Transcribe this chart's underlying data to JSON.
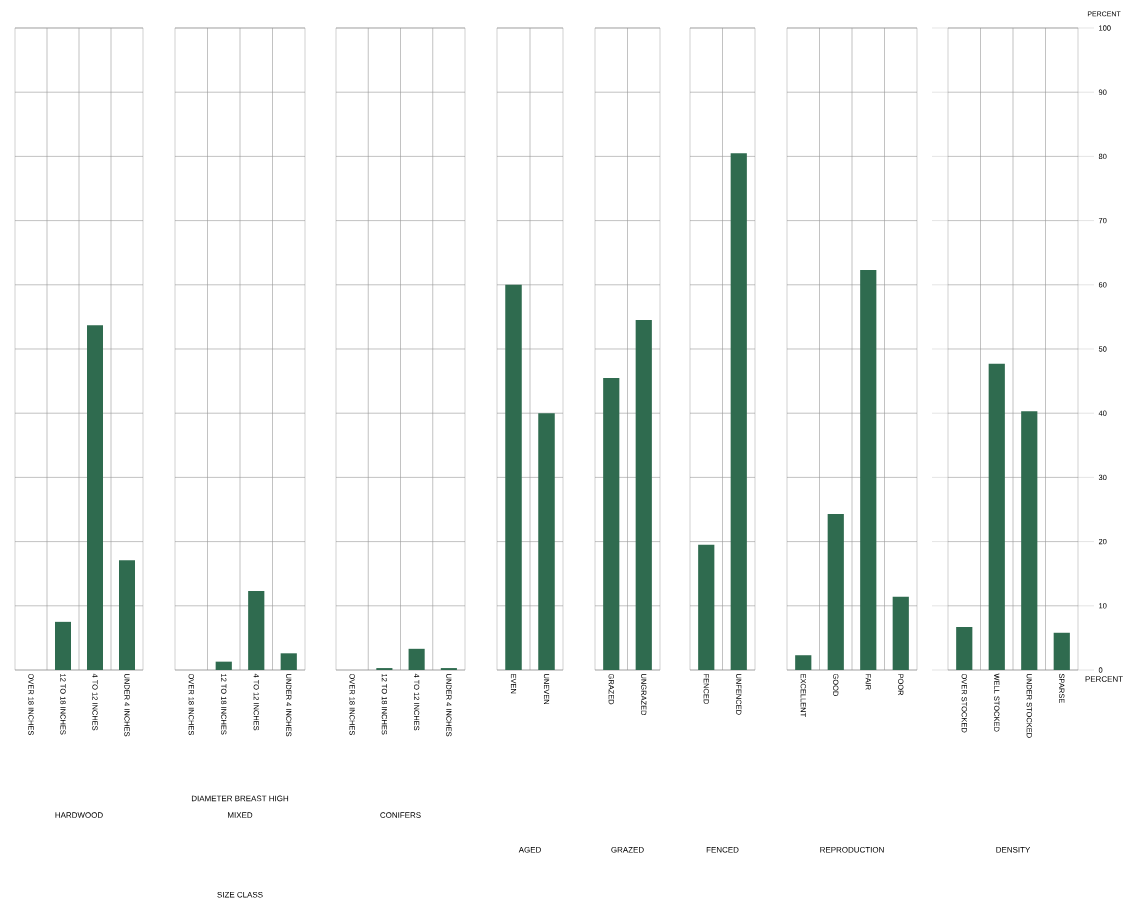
{
  "chart_data": [
    {
      "type": "bar",
      "categories": [
        "OVER 18 INCHES",
        "12 TO 18 INCHES",
        "4 TO 12 INCHES",
        "UNDER 4 INCHES"
      ],
      "values": [
        0,
        7.5,
        53.7,
        17.1
      ],
      "color": "#2f6b4f",
      "ylim": [
        0,
        100
      ],
      "yticks": [
        0,
        10,
        20,
        30,
        40,
        50,
        60,
        70,
        80,
        90,
        100
      ],
      "grid": true,
      "tick_labels": "x",
      "xlabel": "HARDWOOD"
    },
    {
      "type": "bar",
      "categories": [
        "OVER 18 INCHES",
        "12 TO 18 INCHES",
        "4 TO 12 INCHES",
        "UNDER 4 INCHES"
      ],
      "values": [
        0,
        1.3,
        12.3,
        2.6
      ],
      "color": "#2f6b4f",
      "ylim": [
        0,
        100
      ],
      "yticks": [
        0,
        10,
        20,
        30,
        40,
        50,
        60,
        70,
        80,
        90,
        100
      ],
      "grid": true,
      "tick_labels": "x",
      "xlabel": "MIXED",
      "annotations": [
        "DIAMETER BREAST HIGH",
        "SIZE CLASS"
      ]
    },
    {
      "type": "bar",
      "categories": [
        "OVER 18 INCHES",
        "12 TO 18 INCHES",
        "4 TO 12 INCHES",
        "UNDER 4 INCHES"
      ],
      "values": [
        0,
        0.3,
        3.3,
        0.3
      ],
      "color": "#2f6b4f",
      "ylim": [
        0,
        100
      ],
      "yticks": [
        0,
        10,
        20,
        30,
        40,
        50,
        60,
        70,
        80,
        90,
        100
      ],
      "grid": true,
      "tick_labels": "x",
      "xlabel": "CONIFERS"
    },
    {
      "type": "bar",
      "categories": [
        "EVEN",
        "UNEVEN"
      ],
      "values": [
        60,
        40
      ],
      "color": "#2f6b4f",
      "ylim": [
        0,
        100
      ],
      "yticks": [
        0,
        10,
        20,
        30,
        40,
        50,
        60,
        70,
        80,
        90,
        100
      ],
      "grid": true,
      "tick_labels": "x",
      "xlabel": "AGED"
    },
    {
      "type": "bar",
      "categories": [
        "GRAZED",
        "UNGRAZED"
      ],
      "values": [
        45.5,
        54.5
      ],
      "color": "#2f6b4f",
      "ylim": [
        0,
        100
      ],
      "yticks": [
        0,
        10,
        20,
        30,
        40,
        50,
        60,
        70,
        80,
        90,
        100
      ],
      "grid": true,
      "tick_labels": "x",
      "xlabel": "GRAZED"
    },
    {
      "type": "bar",
      "categories": [
        "FENCED",
        "UNFENCED"
      ],
      "values": [
        19.5,
        80.5
      ],
      "color": "#2f6b4f",
      "ylim": [
        0,
        100
      ],
      "yticks": [
        0,
        10,
        20,
        30,
        40,
        50,
        60,
        70,
        80,
        90,
        100
      ],
      "grid": true,
      "tick_labels": "x",
      "xlabel": "FENCED"
    },
    {
      "type": "bar",
      "categories": [
        "EXCELLENT",
        "GOOD",
        "FAIR",
        "POOR"
      ],
      "values": [
        2.3,
        24.3,
        62.3,
        11.4
      ],
      "color": "#2f6b4f",
      "ylim": [
        0,
        100
      ],
      "yticks": [
        0,
        10,
        20,
        30,
        40,
        50,
        60,
        70,
        80,
        90,
        100
      ],
      "grid": true,
      "tick_labels": "x",
      "xlabel": "REPRODUCTION"
    },
    {
      "type": "bar",
      "categories": [
        "OVER STOCKED",
        "WELL STOCKED",
        "UNDER STOCKED",
        "SPARSE"
      ],
      "values": [
        6.7,
        47.7,
        40.3,
        5.8
      ],
      "color": "#2f6b4f",
      "ylim": [
        0,
        100
      ],
      "yticks": [
        0,
        10,
        20,
        30,
        40,
        50,
        60,
        70,
        80,
        90,
        100
      ],
      "grid": true,
      "xlabel": "DENSITY",
      "ylabel": "PERCENT",
      "annotations": [
        "PERCENT"
      ]
    }
  ]
}
